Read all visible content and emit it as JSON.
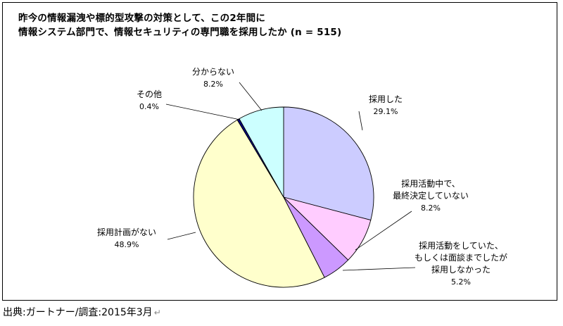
{
  "title_lines": [
    "昨今の情報漏洩や標的型攻撃の対策として、この2年間に",
    "情報システム部門で、情報セキュリティの専門職を採用したか (n = 515)"
  ],
  "footer": "出典:ガートナー/調査:2015年3月",
  "footer_mark": "↵",
  "chart_data": {
    "type": "pie",
    "title": "昨今の情報漏洩や標的型攻撃の対策として、この2年間に情報システム部門で、情報セキュリティの専門職を採用したか (n = 515)",
    "start_angle_deg": 0,
    "direction": "clockwise",
    "slices": [
      {
        "label_lines": [
          "採用した"
        ],
        "value": 29.1,
        "value_label": "29.1%",
        "color": "#ccccff"
      },
      {
        "label_lines": [
          "採用活動中で、",
          "最終決定していない"
        ],
        "value": 8.2,
        "value_label": "8.2%",
        "color": "#ffccff"
      },
      {
        "label_lines": [
          "採用活動をしていた、",
          "もしくは面談までしたが",
          "採用しなかった"
        ],
        "value": 5.2,
        "value_label": "5.2%",
        "color": "#cc99ff"
      },
      {
        "label_lines": [
          "採用計画がない"
        ],
        "value": 48.9,
        "value_label": "48.9%",
        "color": "#ffffcc"
      },
      {
        "label_lines": [
          "その他"
        ],
        "value": 0.4,
        "value_label": "0.4%",
        "color": "#000080"
      },
      {
        "label_lines": [
          "分からない"
        ],
        "value": 8.2,
        "value_label": "8.2%",
        "color": "#ccffff"
      }
    ]
  }
}
